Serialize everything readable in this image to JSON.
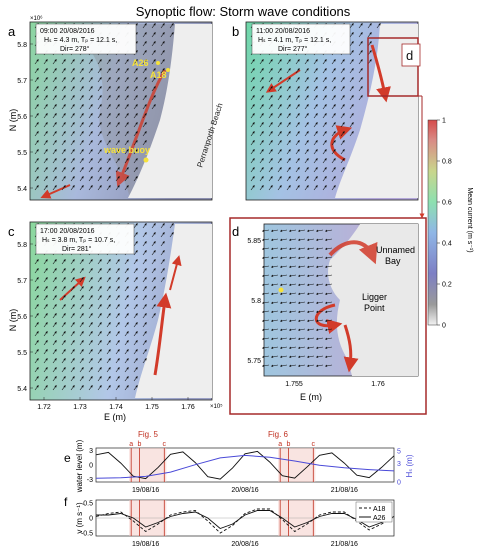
{
  "figure": {
    "title": "Synoptic flow: Storm wave conditions",
    "exp_label_y": "×10⁶",
    "exp_label_x": "×10⁵",
    "ylabel_n": "N (m)",
    "xlabel_e": "E (m)"
  },
  "panels": {
    "a": {
      "letter": "a",
      "time": "09:00 20/08/2016",
      "hs": "Hₛ = 4.3 m, Tₚ = 12.1 s,",
      "dir": "Dir= 278°",
      "labels": {
        "a26": "A26",
        "a18": "A18",
        "wave_buoy": "wave buoy",
        "beach": "Perranporth Beach"
      }
    },
    "b": {
      "letter": "b",
      "time": "11:00 20/08/2016",
      "hs": "Hₛ = 4.1 m, Tₚ = 12.1 s,",
      "dir": "Dir= 277°",
      "inset_letter": "d"
    },
    "c": {
      "letter": "c",
      "time": "17:00 20/08/2016",
      "hs": "Hₛ = 3.8 m, Tₚ = 10.7 s,",
      "dir": "Dir= 281°"
    },
    "d": {
      "letter": "d",
      "unnamed_bay": "Unnamed Bay",
      "ligger_point": "Ligger Point"
    },
    "e": {
      "letter": "e",
      "ylabel_left": "water level (m)",
      "ylabel_right": "Hₛ (m)",
      "fig5": "Fig. 5",
      "fig6": "Fig. 6"
    },
    "f": {
      "letter": "f",
      "ylabel": "v (m s⁻¹)",
      "legend_a18": "A18",
      "legend_a26": "A26"
    }
  },
  "colorbar": {
    "label": "Mean current (m s⁻¹)",
    "ticks": [
      "1",
      "0.8",
      "0.6",
      "0.4",
      "0.2",
      "0"
    ]
  },
  "axes": {
    "map_y_ticks": [
      "5.8",
      "5.7",
      "5.6",
      "5.5",
      "5.4"
    ],
    "map_x_ticks": [
      "1.72",
      "1.73",
      "1.74",
      "1.75",
      "1.76"
    ],
    "d_y_ticks": [
      "5.85",
      "5.8",
      "5.75"
    ],
    "d_x_ticks": [
      "1.755",
      "1.76"
    ],
    "ts_dates": [
      "19/08/16",
      "20/08/16",
      "21/08/16"
    ],
    "e_left_ticks": [
      "3",
      "0",
      "-3"
    ],
    "e_right_ticks": [
      "5",
      "3",
      "0"
    ],
    "f_ticks": [
      "0.5",
      "0",
      "-0.5"
    ],
    "marker_letters": [
      "a",
      "b",
      "c"
    ]
  },
  "chart_data": [
    {
      "type": "line",
      "title": "",
      "xlabel": "",
      "ylabel": "water level (m)",
      "x": [
        0,
        3,
        6,
        9,
        12,
        15,
        18,
        21,
        24,
        27,
        30,
        33,
        36,
        39,
        42,
        45,
        48,
        51,
        54,
        57,
        60,
        63,
        66,
        69,
        72
      ],
      "series": [
        {
          "name": "",
          "values": [
            2.1,
            2.6,
            0.4,
            -2.3,
            -2.8,
            -0.5,
            2.2,
            2.7,
            0.5,
            -2.4,
            -2.9,
            -0.6,
            2.3,
            2.8,
            0.6,
            -2.2,
            -2.7,
            -0.4,
            2.0,
            2.5,
            0.4,
            -2.1,
            -2.6,
            -0.5,
            1.9
          ]
        }
      ],
      "ylim": [
        -3.5,
        3.5
      ]
    },
    {
      "type": "line",
      "title": "",
      "xlabel": "",
      "ylabel": "Hₛ (m)",
      "x": [
        0,
        6,
        12,
        18,
        24,
        30,
        36,
        42,
        48,
        54,
        60,
        66,
        72
      ],
      "series": [
        {
          "name": "",
          "values": [
            0.6,
            0.7,
            0.9,
            1.6,
            2.8,
            3.9,
            4.3,
            4.0,
            3.4,
            2.7,
            2.3,
            2.0,
            1.8
          ]
        }
      ],
      "ylim": [
        0,
        5.5
      ]
    },
    {
      "type": "line",
      "title": "",
      "xlabel": "",
      "ylabel": "v (m s⁻¹)",
      "x": [
        0,
        3,
        6,
        9,
        12,
        15,
        18,
        21,
        24,
        27,
        30,
        33,
        36,
        39,
        42,
        45,
        48,
        51,
        54,
        57,
        60,
        63,
        66,
        69,
        72
      ],
      "series": [
        {
          "name": "A18",
          "values": [
            0.05,
            0.15,
            0.2,
            -0.1,
            -0.45,
            -0.2,
            0.1,
            0.2,
            0.25,
            -0.1,
            -0.5,
            -0.25,
            0.15,
            0.3,
            0.3,
            -0.05,
            -0.45,
            -0.2,
            0.1,
            0.2,
            0.2,
            -0.1,
            -0.4,
            -0.2,
            0.05
          ]
        },
        {
          "name": "A26",
          "values": [
            0.1,
            0.1,
            0.15,
            0.0,
            -0.3,
            -0.15,
            0.05,
            0.15,
            0.2,
            0.0,
            -0.35,
            -0.2,
            0.1,
            0.25,
            0.25,
            0.0,
            -0.3,
            -0.15,
            0.05,
            0.15,
            0.15,
            -0.05,
            -0.3,
            -0.15,
            0.05
          ]
        }
      ],
      "ylim": [
        -0.6,
        0.6
      ]
    }
  ]
}
